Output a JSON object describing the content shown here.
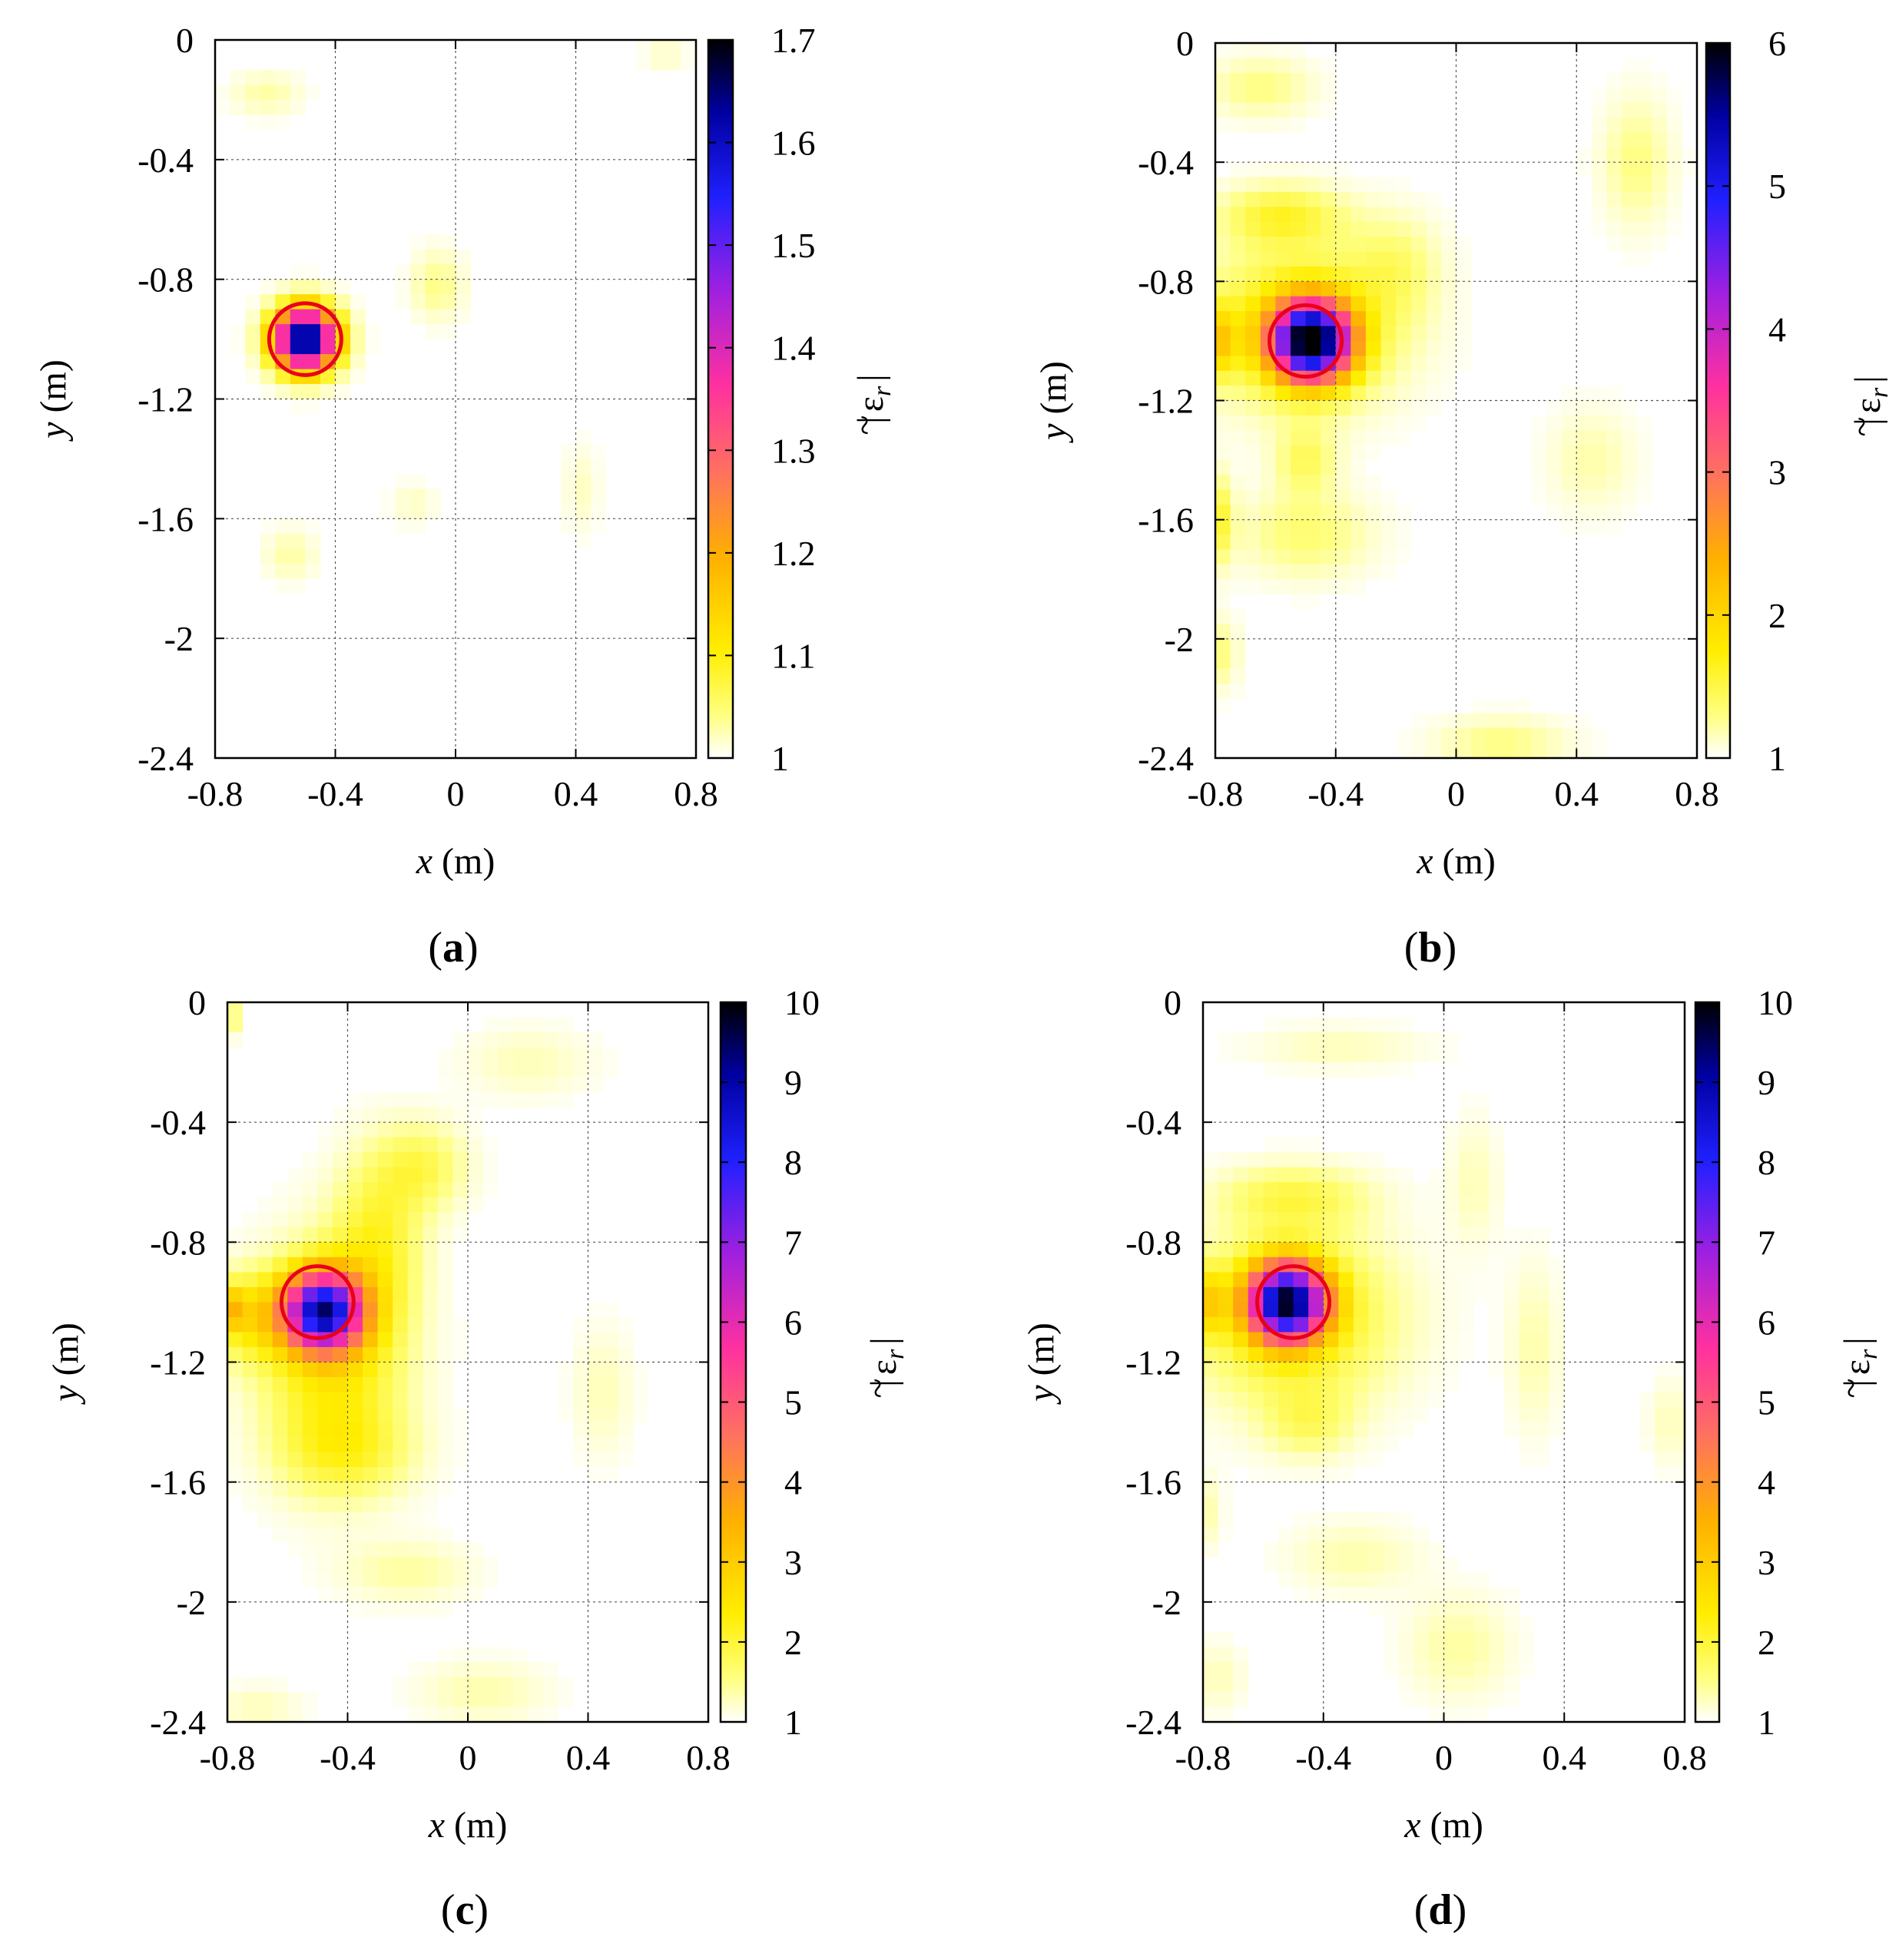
{
  "figure": {
    "panels": [
      {
        "id": "a",
        "caption_open": "(",
        "caption_letter": "a",
        "caption_close": ")",
        "xlabel_var": "x",
        "xlabel_unit": " (m)",
        "ylabel_var": "y",
        "ylabel_unit": " (m)",
        "colorbar_label_base": "ε",
        "colorbar_label_sub": "r",
        "colorbar_label_tilde": "~",
        "colorbar_label_bar": "|",
        "colorbar_ticks": [
          "1.7",
          "1.6",
          "1.5",
          "1.4",
          "1.3",
          "1.2",
          "1.1",
          "1"
        ]
      },
      {
        "id": "b",
        "caption_open": "(",
        "caption_letter": "b",
        "caption_close": ")",
        "xlabel_var": "x",
        "xlabel_unit": " (m)",
        "ylabel_var": "y",
        "ylabel_unit": " (m)",
        "colorbar_label_base": "ε",
        "colorbar_label_sub": "r",
        "colorbar_label_tilde": "~",
        "colorbar_label_bar": "|",
        "colorbar_ticks": [
          "6",
          "5",
          "4",
          "3",
          "2",
          "1"
        ]
      },
      {
        "id": "c",
        "caption_open": "(",
        "caption_letter": "c",
        "caption_close": ")",
        "xlabel_var": "x",
        "xlabel_unit": " (m)",
        "ylabel_var": "y",
        "ylabel_unit": " (m)",
        "colorbar_label_base": "ε",
        "colorbar_label_sub": "r",
        "colorbar_label_tilde": "~",
        "colorbar_label_bar": "|",
        "colorbar_ticks": [
          "10",
          "9",
          "8",
          "7",
          "6",
          "5",
          "4",
          "3",
          "2",
          "1"
        ]
      },
      {
        "id": "d",
        "caption_open": "(",
        "caption_letter": "d",
        "caption_close": ")",
        "xlabel_var": "x",
        "xlabel_unit": " (m)",
        "ylabel_var": "y",
        "ylabel_unit": " (m)",
        "colorbar_label_base": "ε",
        "colorbar_label_sub": "r",
        "colorbar_label_tilde": "~",
        "colorbar_label_bar": "|",
        "colorbar_ticks": [
          "10",
          "9",
          "8",
          "7",
          "6",
          "5",
          "4",
          "3",
          "2",
          "1"
        ]
      }
    ]
  },
  "chart_data": [
    {
      "type": "heatmap",
      "title": "(a)",
      "xlabel": "x (m)",
      "ylabel": "y (m)",
      "colorbar_label": "|ε̃r|",
      "xlim": [
        -0.8,
        0.8
      ],
      "ylim": [
        -2.4,
        0
      ],
      "x_ticks": [
        "-0.8",
        "-0.4",
        "0",
        "0.4",
        "0.8"
      ],
      "y_ticks": [
        "0",
        "-0.4",
        "-0.8",
        "-1.2",
        "-1.6",
        "-2",
        "-2.4"
      ],
      "clim": [
        1,
        1.7
      ],
      "grid": true,
      "target_circle": {
        "cx": -0.5,
        "cy": -1.0,
        "r": 0.12
      },
      "blobs": [
        {
          "x": -0.5,
          "y": -1.0,
          "sx": 0.07,
          "sy": 0.07,
          "amp": 0.7
        },
        {
          "x": -0.06,
          "y": -0.82,
          "sx": 0.06,
          "sy": 0.08,
          "amp": 0.04
        },
        {
          "x": -0.63,
          "y": -0.18,
          "sx": 0.08,
          "sy": 0.05,
          "amp": 0.03
        },
        {
          "x": -0.55,
          "y": -1.72,
          "sx": 0.06,
          "sy": 0.06,
          "amp": 0.03
        },
        {
          "x": 0.42,
          "y": -1.5,
          "sx": 0.04,
          "sy": 0.1,
          "amp": 0.02
        },
        {
          "x": -0.14,
          "y": -1.55,
          "sx": 0.05,
          "sy": 0.05,
          "amp": 0.02
        },
        {
          "x": 0.7,
          "y": -0.05,
          "sx": 0.05,
          "sy": 0.04,
          "amp": 0.02
        }
      ]
    },
    {
      "type": "heatmap",
      "title": "(b)",
      "xlabel": "x (m)",
      "ylabel": "y (m)",
      "colorbar_label": "|ε̃r|",
      "xlim": [
        -0.8,
        0.8
      ],
      "ylim": [
        -2.4,
        0
      ],
      "x_ticks": [
        "-0.8",
        "-0.4",
        "0",
        "0.4",
        "0.8"
      ],
      "y_ticks": [
        "0",
        "-0.4",
        "-0.8",
        "-1.2",
        "-1.6",
        "-2",
        "-2.4"
      ],
      "clim": [
        1,
        6
      ],
      "grid": true,
      "target_circle": {
        "cx": -0.5,
        "cy": -1.0,
        "r": 0.12
      },
      "blobs": [
        {
          "x": -0.48,
          "y": -1.0,
          "sx": 0.09,
          "sy": 0.09,
          "amp": 4.8
        },
        {
          "x": -0.52,
          "y": -0.95,
          "sx": 0.22,
          "sy": 0.18,
          "amp": 0.8
        },
        {
          "x": -0.58,
          "y": -0.58,
          "sx": 0.14,
          "sy": 0.07,
          "amp": 0.55
        },
        {
          "x": -0.8,
          "y": -1.0,
          "sx": 0.05,
          "sy": 0.08,
          "amp": 0.9
        },
        {
          "x": -0.5,
          "y": -1.4,
          "sx": 0.07,
          "sy": 0.08,
          "amp": 0.4
        },
        {
          "x": -0.5,
          "y": -1.65,
          "sx": 0.15,
          "sy": 0.1,
          "amp": 0.35
        },
        {
          "x": -0.8,
          "y": -1.6,
          "sx": 0.04,
          "sy": 0.1,
          "amp": 0.6
        },
        {
          "x": -0.2,
          "y": -0.75,
          "sx": 0.1,
          "sy": 0.12,
          "amp": 0.3
        },
        {
          "x": -0.65,
          "y": -0.15,
          "sx": 0.12,
          "sy": 0.07,
          "amp": 0.3
        },
        {
          "x": 0.6,
          "y": -0.4,
          "sx": 0.08,
          "sy": 0.15,
          "amp": 0.3
        },
        {
          "x": 0.45,
          "y": -1.4,
          "sx": 0.1,
          "sy": 0.12,
          "amp": 0.2
        },
        {
          "x": 0.15,
          "y": -2.35,
          "sx": 0.15,
          "sy": 0.06,
          "amp": 0.3
        },
        {
          "x": -0.78,
          "y": -2.05,
          "sx": 0.04,
          "sy": 0.08,
          "amp": 0.3
        }
      ]
    },
    {
      "type": "heatmap",
      "title": "(c)",
      "xlabel": "x (m)",
      "ylabel": "y (m)",
      "colorbar_label": "|ε̃r|",
      "xlim": [
        -0.8,
        0.8
      ],
      "ylim": [
        -2.4,
        0
      ],
      "x_ticks": [
        "-0.8",
        "-0.4",
        "0",
        "0.4",
        "0.8"
      ],
      "y_ticks": [
        "0",
        "-0.4",
        "-0.8",
        "-1.2",
        "-1.6",
        "-2",
        "-2.4"
      ],
      "clim": [
        1,
        10
      ],
      "grid": true,
      "target_circle": {
        "cx": -0.5,
        "cy": -1.0,
        "r": 0.12
      },
      "blobs": [
        {
          "x": -0.48,
          "y": -1.03,
          "sx": 0.09,
          "sy": 0.09,
          "amp": 7.2
        },
        {
          "x": -0.45,
          "y": -1.2,
          "sx": 0.16,
          "sy": 0.25,
          "amp": 1.4
        },
        {
          "x": -0.3,
          "y": -0.8,
          "sx": 0.1,
          "sy": 0.2,
          "amp": 1.0
        },
        {
          "x": -0.72,
          "y": -1.05,
          "sx": 0.1,
          "sy": 0.1,
          "amp": 1.3
        },
        {
          "x": -0.8,
          "y": -1.02,
          "sx": 0.04,
          "sy": 0.05,
          "amp": 1.5
        },
        {
          "x": -0.15,
          "y": -0.55,
          "sx": 0.1,
          "sy": 0.1,
          "amp": 0.8
        },
        {
          "x": -0.4,
          "y": -1.5,
          "sx": 0.15,
          "sy": 0.1,
          "amp": 0.7
        },
        {
          "x": -0.2,
          "y": -1.9,
          "sx": 0.15,
          "sy": 0.07,
          "amp": 0.4
        },
        {
          "x": 0.45,
          "y": -1.3,
          "sx": 0.07,
          "sy": 0.15,
          "amp": 0.3
        },
        {
          "x": 0.2,
          "y": -0.2,
          "sx": 0.15,
          "sy": 0.08,
          "amp": 0.3
        },
        {
          "x": 0.05,
          "y": -2.3,
          "sx": 0.15,
          "sy": 0.07,
          "amp": 0.35
        },
        {
          "x": -0.7,
          "y": -2.35,
          "sx": 0.1,
          "sy": 0.05,
          "amp": 0.3
        },
        {
          "x": -0.8,
          "y": -0.05,
          "sx": 0.03,
          "sy": 0.04,
          "amp": 0.8
        }
      ]
    },
    {
      "type": "heatmap",
      "title": "(d)",
      "xlabel": "x (m)",
      "ylabel": "y (m)",
      "colorbar_label": "|ε̃r|",
      "xlim": [
        -0.8,
        0.8
      ],
      "ylim": [
        -2.4,
        0
      ],
      "x_ticks": [
        "-0.8",
        "-0.4",
        "0",
        "0.4",
        "0.8"
      ],
      "y_ticks": [
        "0",
        "-0.4",
        "-0.8",
        "-1.2",
        "-1.6",
        "-2",
        "-2.4"
      ],
      "clim": [
        1,
        10
      ],
      "grid": true,
      "target_circle": {
        "cx": -0.5,
        "cy": -1.0,
        "r": 0.12
      },
      "blobs": [
        {
          "x": -0.52,
          "y": -1.0,
          "sx": 0.09,
          "sy": 0.09,
          "amp": 7.8
        },
        {
          "x": -0.5,
          "y": -1.05,
          "sx": 0.23,
          "sy": 0.2,
          "amp": 1.3
        },
        {
          "x": -0.5,
          "y": -0.65,
          "sx": 0.17,
          "sy": 0.07,
          "amp": 0.8
        },
        {
          "x": -0.8,
          "y": -1.0,
          "sx": 0.05,
          "sy": 0.08,
          "amp": 1.5
        },
        {
          "x": -0.45,
          "y": -1.4,
          "sx": 0.1,
          "sy": 0.08,
          "amp": 0.6
        },
        {
          "x": -0.3,
          "y": -1.85,
          "sx": 0.15,
          "sy": 0.08,
          "amp": 0.35
        },
        {
          "x": 0.3,
          "y": -1.15,
          "sx": 0.06,
          "sy": 0.2,
          "amp": 0.35
        },
        {
          "x": 0.1,
          "y": -0.6,
          "sx": 0.06,
          "sy": 0.15,
          "amp": 0.3
        },
        {
          "x": -0.35,
          "y": -0.15,
          "sx": 0.2,
          "sy": 0.05,
          "amp": 0.3
        },
        {
          "x": 0.05,
          "y": -2.15,
          "sx": 0.12,
          "sy": 0.12,
          "amp": 0.4
        },
        {
          "x": -0.75,
          "y": -2.25,
          "sx": 0.06,
          "sy": 0.08,
          "amp": 0.3
        },
        {
          "x": 0.75,
          "y": -1.4,
          "sx": 0.05,
          "sy": 0.1,
          "amp": 0.3
        },
        {
          "x": -0.8,
          "y": -1.7,
          "sx": 0.04,
          "sy": 0.08,
          "amp": 0.4
        }
      ]
    }
  ]
}
